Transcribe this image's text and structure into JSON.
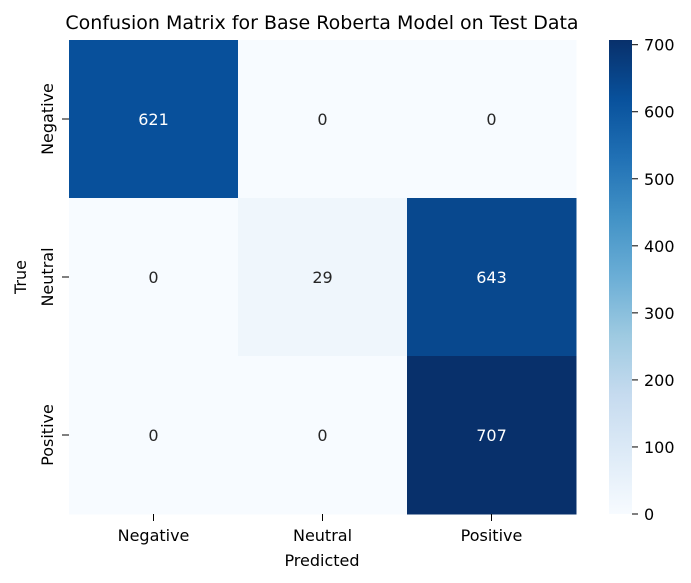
{
  "chart_data": {
    "type": "heatmap",
    "title": "Confusion Matrix for Base Roberta Model on Test Data",
    "xlabel": "Predicted",
    "ylabel": "True",
    "x_categories": [
      "Negative",
      "Neutral",
      "Positive"
    ],
    "y_categories": [
      "Negative",
      "Neutral",
      "Positive"
    ],
    "values": [
      [
        621,
        0,
        0
      ],
      [
        0,
        29,
        643
      ],
      [
        0,
        0,
        707
      ]
    ],
    "colormap": "Blues",
    "colorbar": {
      "range": [
        0,
        707
      ],
      "ticks": [
        "0",
        "100",
        "200",
        "300",
        "400",
        "500",
        "600",
        "700"
      ]
    }
  }
}
